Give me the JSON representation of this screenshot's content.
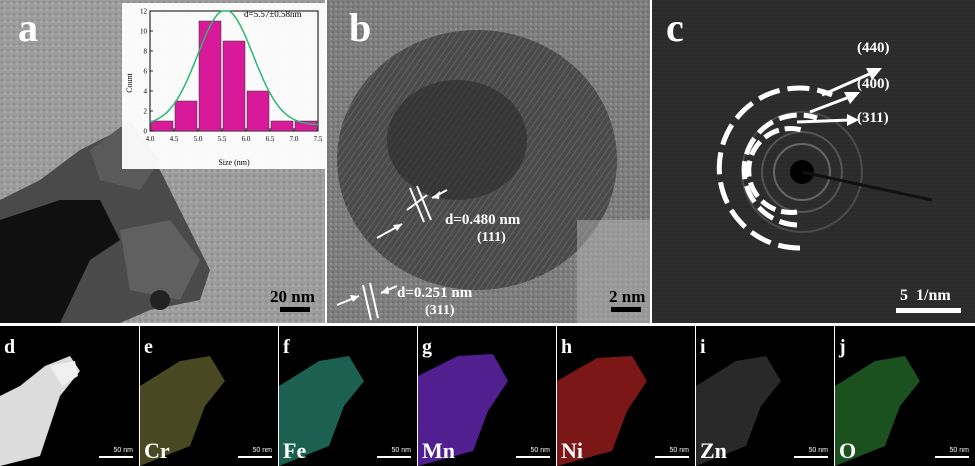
{
  "panels": {
    "a": {
      "label": "a",
      "scalebar": "20 nm"
    },
    "b": {
      "label": "b",
      "scalebar": "2 nm",
      "fringe1": {
        "d": "d=0.480 nm",
        "hkl": "(111)"
      },
      "fringe2": {
        "d": "d=0.251 nm",
        "hkl": "(311)"
      }
    },
    "c": {
      "label": "c",
      "scalebar": "5  1/nm",
      "rings": [
        "(440)",
        "(400)",
        "(311)"
      ]
    },
    "d": {
      "label": "d",
      "scalebar": "50 nm"
    },
    "e": {
      "label": "e",
      "element": "Cr",
      "scalebar": "50 nm",
      "color": "#c8c060"
    },
    "f": {
      "label": "f",
      "element": "Fe",
      "scalebar": "50 nm",
      "color": "#30d0b0"
    },
    "g": {
      "label": "g",
      "element": "Mn",
      "scalebar": "50 nm",
      "color": "#8a30e0"
    },
    "h": {
      "label": "h",
      "element": "Ni",
      "scalebar": "50 nm",
      "color": "#e02020"
    },
    "i": {
      "label": "i",
      "element": "Zn",
      "scalebar": "50 nm",
      "color": "#c0c0c0"
    },
    "j": {
      "label": "j",
      "element": "O",
      "scalebar": "50 nm",
      "color": "#30c040"
    }
  },
  "chart_data": {
    "type": "bar",
    "categories": [
      "4.5",
      "5.0",
      "5.5",
      "6.0",
      "6.5",
      "7.0",
      "7.5"
    ],
    "x": [
      4.25,
      4.75,
      5.25,
      5.75,
      6.25,
      6.75,
      7.25
    ],
    "values": [
      1,
      3,
      11,
      9,
      4,
      1,
      1
    ],
    "title": "d=5.57±0.58nm",
    "xlabel": "Size (nm)",
    "ylabel": "Count",
    "xlim": [
      4.0,
      7.5
    ],
    "ylim": [
      0,
      12
    ],
    "xticks": [
      "4.0",
      "4.5",
      "5.0",
      "5.5",
      "6.0",
      "6.5",
      "7.0",
      "7.5"
    ],
    "yticks": [
      "0",
      "2",
      "4",
      "6",
      "8",
      "10",
      "12"
    ],
    "fit": "gaussian",
    "fit_color": "#2ab870",
    "bar_color": "#d81a9a"
  }
}
